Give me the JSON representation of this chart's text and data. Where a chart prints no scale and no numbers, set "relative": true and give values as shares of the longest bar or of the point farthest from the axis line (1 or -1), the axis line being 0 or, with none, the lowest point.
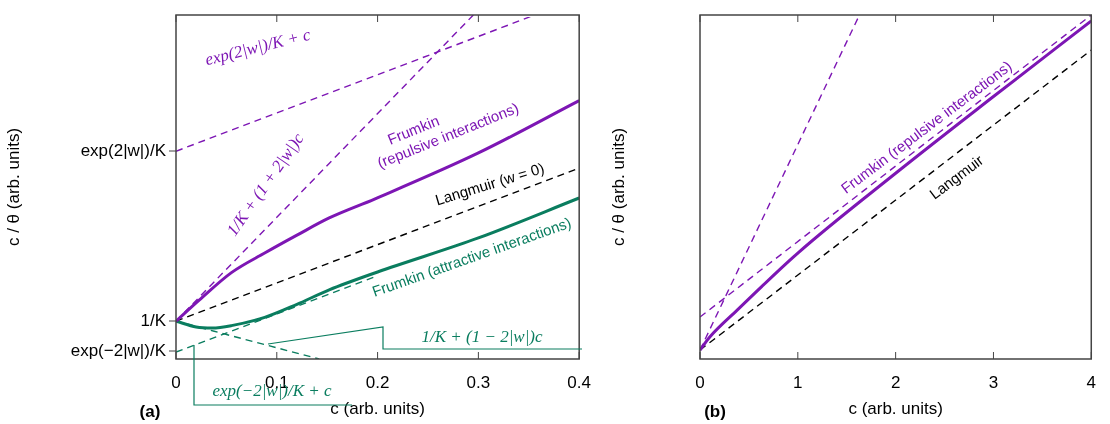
{
  "chart_data": [
    {
      "type": "line",
      "relative": true,
      "xlabel": "c (arb. units)",
      "ylabel": "c / θ (arb. units)",
      "xlim": [
        0,
        0.4
      ],
      "xticks": [
        0,
        0.1,
        0.2,
        0.3,
        0.4
      ],
      "grid": false,
      "legend": false,
      "marker": "none",
      "annotations": [
        "(a)",
        "exp(2|w|)/K",
        "1/K",
        "exp(−2|w|)/K"
      ],
      "series": [
        {
          "name": "Frumkin (repulsive interactions)",
          "color": "#7d16b4",
          "line_style": "solid",
          "x": [
            0,
            0.023,
            0.055,
            0.088,
            0.12,
            0.152,
            0.197,
            0.3,
            0.4
          ],
          "values": [
            0.11,
            0.171,
            0.251,
            0.308,
            0.36,
            0.41,
            0.465,
            0.599,
            0.751
          ]
        },
        {
          "name": "Langmuir (w = 0)",
          "color": "#000000",
          "line_style": "dashed",
          "x": [
            0,
            0.4
          ],
          "values": [
            0.11,
            0.555
          ]
        },
        {
          "name": "Frumkin (attractive interactions)",
          "color": "#0a7d5f",
          "line_style": "solid",
          "x": [
            0,
            0.02,
            0.036,
            0.055,
            0.088,
            0.12,
            0.152,
            0.2,
            0.3,
            0.4
          ],
          "values": [
            0.11,
            0.093,
            0.09,
            0.097,
            0.121,
            0.159,
            0.201,
            0.253,
            0.352,
            0.468
          ]
        },
        {
          "name": "exp(2|w|)/K + c",
          "color": "#7d16b4",
          "line_style": "dashed",
          "x": [
            0,
            0.356
          ],
          "values": [
            0.604,
            1
          ]
        },
        {
          "name": "1/K + (1 + 2|w|)c",
          "color": "#7d16b4",
          "line_style": "dashed",
          "x": [
            0,
            0.295
          ],
          "values": [
            0.11,
            1
          ]
        },
        {
          "name": "1/K + (1 − 2|w|)c",
          "color": "#0a7d5f",
          "line_style": "dashed",
          "x": [
            0,
            0.142
          ],
          "values": [
            0.11,
            0
          ]
        },
        {
          "name": "exp(−2|w|)/K + c",
          "color": "#0a7d5f",
          "line_style": "dashed",
          "x": [
            0,
            0.2
          ],
          "values": [
            0.02,
            0.242
          ]
        }
      ]
    },
    {
      "type": "line",
      "relative": true,
      "xlabel": "c (arb. units)",
      "ylabel": "c / θ (arb. units)",
      "xlim": [
        0,
        4
      ],
      "xticks": [
        0,
        1,
        2,
        3,
        4
      ],
      "grid": false,
      "legend": false,
      "marker": "none",
      "annotations": [
        "(b)"
      ],
      "series": [
        {
          "name": "Frumkin (repulsive interactions)",
          "color": "#7d16b4",
          "line_style": "solid",
          "x": [
            0,
            0.1,
            0.38,
            1,
            2,
            3,
            4
          ],
          "values": [
            0.026,
            0.064,
            0.142,
            0.308,
            0.54,
            0.763,
            0.983
          ]
        },
        {
          "name": "Langmuir",
          "color": "#000000",
          "line_style": "dashed",
          "x": [
            0,
            4
          ],
          "values": [
            0.026,
            0.898
          ]
        },
        {
          "color": "#7d16b4",
          "line_style": "dashed",
          "x": [
            0,
            4
          ],
          "values": [
            0.122,
            1
          ]
        },
        {
          "color": "#7d16b4",
          "line_style": "dashed",
          "x": [
            0,
            1.63
          ],
          "values": [
            0.026,
            1
          ]
        }
      ]
    }
  ]
}
